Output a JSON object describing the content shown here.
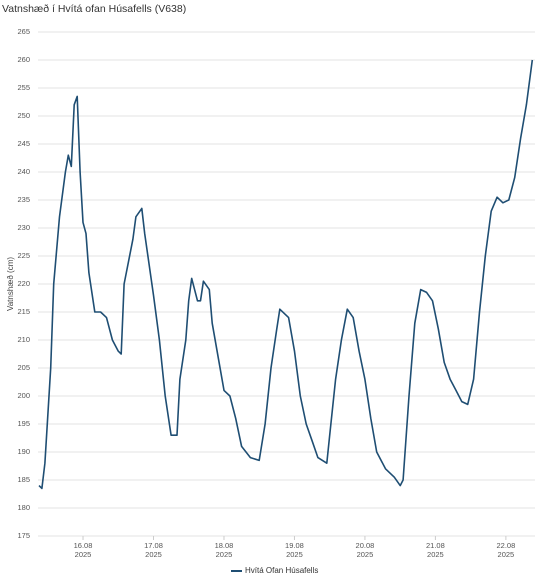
{
  "chart_data": {
    "type": "line",
    "title": "Vatnshæð í Hvítá ofan Húsafells (V638)",
    "y_label": "Vatnshæð (cm)",
    "x": [
      "2025-08-15T09:00",
      "2025-08-15T10:00",
      "2025-08-15T11:00",
      "2025-08-15T13:00",
      "2025-08-15T14:00",
      "2025-08-15T16:00",
      "2025-08-15T18:00",
      "2025-08-15T19:00",
      "2025-08-15T20:00",
      "2025-08-15T21:00",
      "2025-08-15T22:00",
      "2025-08-15T23:00",
      "2025-08-16T00:00",
      "2025-08-16T01:00",
      "2025-08-16T02:00",
      "2025-08-16T04:00",
      "2025-08-16T06:00",
      "2025-08-16T08:00",
      "2025-08-16T10:00",
      "2025-08-16T12:00",
      "2025-08-16T13:00",
      "2025-08-16T14:00",
      "2025-08-16T17:00",
      "2025-08-16T18:00",
      "2025-08-16T20:00",
      "2025-08-16T21:00",
      "2025-08-17T00:00",
      "2025-08-17T02:00",
      "2025-08-17T04:00",
      "2025-08-17T06:00",
      "2025-08-17T08:00",
      "2025-08-17T09:00",
      "2025-08-17T11:00",
      "2025-08-17T12:00",
      "2025-08-17T13:00",
      "2025-08-17T15:00",
      "2025-08-17T16:00",
      "2025-08-17T17:00",
      "2025-08-17T19:00",
      "2025-08-17T20:00",
      "2025-08-17T22:00",
      "2025-08-18T00:00",
      "2025-08-18T02:00",
      "2025-08-18T04:00",
      "2025-08-18T06:00",
      "2025-08-18T09:00",
      "2025-08-18T12:00",
      "2025-08-18T14:00",
      "2025-08-18T16:00",
      "2025-08-18T18:00",
      "2025-08-18T19:00",
      "2025-08-18T22:00",
      "2025-08-19T00:00",
      "2025-08-19T02:00",
      "2025-08-19T04:00",
      "2025-08-19T06:00",
      "2025-08-19T08:00",
      "2025-08-19T11:00",
      "2025-08-19T12:00",
      "2025-08-19T14:00",
      "2025-08-19T16:00",
      "2025-08-19T18:00",
      "2025-08-19T20:00",
      "2025-08-19T22:00",
      "2025-08-20T00:00",
      "2025-08-20T02:00",
      "2025-08-20T04:00",
      "2025-08-20T07:00",
      "2025-08-20T10:00",
      "2025-08-20T12:00",
      "2025-08-20T13:00",
      "2025-08-20T15:00",
      "2025-08-20T17:00",
      "2025-08-20T19:00",
      "2025-08-20T21:00",
      "2025-08-20T23:00",
      "2025-08-21T01:00",
      "2025-08-21T03:00",
      "2025-08-21T05:00",
      "2025-08-21T07:00",
      "2025-08-21T09:00",
      "2025-08-21T11:00",
      "2025-08-21T13:00",
      "2025-08-21T15:00",
      "2025-08-21T17:00",
      "2025-08-21T19:00",
      "2025-08-21T21:00",
      "2025-08-21T23:00",
      "2025-08-22T01:00",
      "2025-08-22T03:00",
      "2025-08-22T05:00",
      "2025-08-22T07:00",
      "2025-08-22T09:00"
    ],
    "series": [
      {
        "name": "Hvítá Ofan Húsafells",
        "color": "#1f4e73",
        "values": [
          184,
          183.5,
          188,
          205,
          220,
          232,
          240,
          243,
          241,
          252,
          253.5,
          240,
          231,
          229,
          222,
          215,
          215,
          214,
          210,
          208,
          207.5,
          220,
          228,
          232,
          233.5,
          229,
          218,
          210,
          200,
          193,
          193,
          203,
          210,
          217,
          221,
          217,
          217,
          220.5,
          219,
          213,
          207,
          201,
          200,
          196,
          191,
          189,
          188.5,
          195,
          205,
          212,
          215.5,
          214,
          208,
          200,
          195,
          192,
          189,
          188,
          193,
          203,
          210,
          215.5,
          214,
          208,
          203,
          196,
          190,
          187,
          185.5,
          184,
          185,
          200,
          213,
          219,
          218.5,
          217,
          212,
          206,
          203,
          201,
          199,
          198.5,
          203,
          215,
          225,
          233,
          235.5,
          234.5,
          235,
          239,
          246,
          252,
          260
        ]
      }
    ],
    "xlim": [
      "2025-08-15T08:40",
      "2025-08-22T09:55"
    ],
    "xticks": [
      {
        "value": "2025-08-16T00:00",
        "label": "16.08\n2025"
      },
      {
        "value": "2025-08-17T00:00",
        "label": "17.08\n2025"
      },
      {
        "value": "2025-08-18T00:00",
        "label": "18.08\n2025"
      },
      {
        "value": "2025-08-19T00:00",
        "label": "19.08\n2025"
      },
      {
        "value": "2025-08-20T00:00",
        "label": "20.08\n2025"
      },
      {
        "value": "2025-08-21T00:00",
        "label": "21.08\n2025"
      },
      {
        "value": "2025-08-22T00:00",
        "label": "22.08\n2025"
      }
    ],
    "ylim": [
      175,
      265
    ],
    "yticks": [
      175,
      180,
      185,
      190,
      195,
      200,
      205,
      210,
      215,
      220,
      225,
      230,
      235,
      240,
      245,
      250,
      255,
      260,
      265
    ],
    "grid": true,
    "legend": "bottom"
  }
}
